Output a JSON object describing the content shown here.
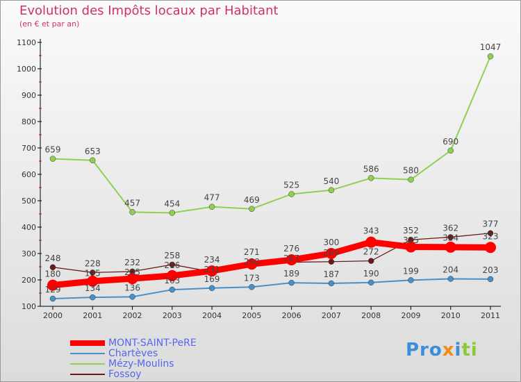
{
  "title": "Evolution des Impôts locaux par Habitant",
  "subtitle": "(en € et par an)",
  "logo": "Proxiti",
  "chart_data": {
    "type": "line",
    "title": "Evolution des Impôts locaux par Habitant",
    "subtitle": "(en € et par an)",
    "x": [
      2000,
      2001,
      2002,
      2003,
      2004,
      2005,
      2006,
      2007,
      2008,
      2009,
      2010,
      2011
    ],
    "ylim": [
      100,
      1100
    ],
    "yticks": [
      100,
      200,
      300,
      400,
      500,
      600,
      700,
      800,
      900,
      1000,
      1100
    ],
    "legend_position": "bottom-left",
    "series": [
      {
        "name": "MONT-SAINT-PeRE",
        "color": "#ff0000",
        "values": [
          180,
          195,
          205,
          216,
          234,
          260,
          276,
          300,
          343,
          325,
          324,
          323
        ]
      },
      {
        "name": "Chartèves",
        "color": "#4a90c8",
        "values": [
          129,
          134,
          136,
          163,
          169,
          173,
          189,
          187,
          190,
          199,
          204,
          203
        ]
      },
      {
        "name": "Mézy-Moulins",
        "color": "#90d050",
        "values": [
          659,
          653,
          457,
          454,
          477,
          469,
          525,
          540,
          586,
          580,
          690,
          1047
        ]
      },
      {
        "name": "Fossoy",
        "color": "#6b1a1a",
        "values": [
          248,
          228,
          232,
          258,
          231,
          271,
          267,
          269,
          272,
          352,
          362,
          377
        ]
      }
    ]
  }
}
